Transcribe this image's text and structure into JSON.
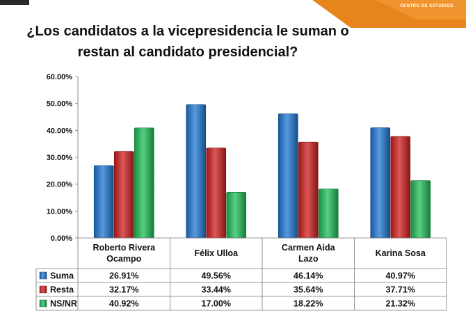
{
  "branding": {
    "corner_label": "CENTRO DE ESTUDIOS"
  },
  "title_lines": [
    "¿Los candidatos a la vicepresidencia le suman o",
    "restan al candidato presidencial?"
  ],
  "chart_data": {
    "type": "bar",
    "title": "¿Los candidatos a la vicepresidencia le suman o restan al candidato presidencial?",
    "categories": [
      [
        "Roberto Rivera",
        "Ocampo"
      ],
      [
        "Félix Ulloa"
      ],
      [
        "Carmen Aida",
        "Lazo"
      ],
      [
        "Karina Sosa"
      ]
    ],
    "series": [
      {
        "name": "Suma",
        "color": "#1f78d4",
        "values": [
          26.91,
          49.56,
          46.14,
          40.97
        ],
        "labels": [
          "26.91%",
          "49.56%",
          "46.14%",
          "40.97%"
        ]
      },
      {
        "name": "Resta",
        "color": "#d21f1f",
        "values": [
          32.17,
          33.44,
          35.64,
          37.71
        ],
        "labels": [
          "32.17%",
          "33.44%",
          "35.64%",
          "37.71%"
        ]
      },
      {
        "name": "NS/NR",
        "color": "#1fbf5a",
        "values": [
          40.92,
          17.0,
          18.22,
          21.32
        ],
        "labels": [
          "40.92%",
          "17.00%",
          "18.22%",
          "21.32%"
        ]
      }
    ],
    "yticks": [
      {
        "value": 0,
        "label": "0.00%"
      },
      {
        "value": 10,
        "label": "10.00%"
      },
      {
        "value": 20,
        "label": "20.00%"
      },
      {
        "value": 30,
        "label": "30.00%"
      },
      {
        "value": 40,
        "label": "40.00%"
      },
      {
        "value": 50,
        "label": "50.00%"
      },
      {
        "value": 60,
        "label": "60.00%"
      }
    ],
    "ylim": [
      0,
      60
    ],
    "grid": false,
    "legend": "data table below chart"
  }
}
